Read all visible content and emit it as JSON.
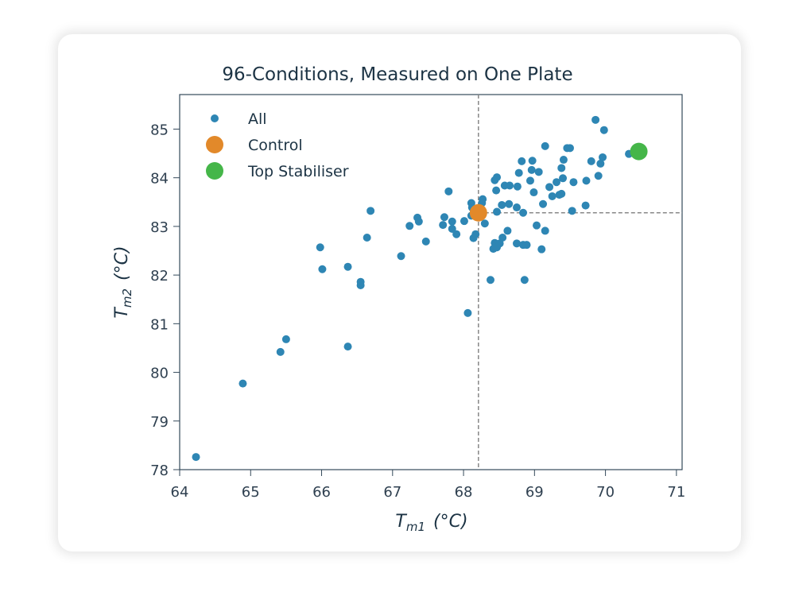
{
  "chart_data": {
    "type": "scatter",
    "title": "96-Conditions, Measured on One Plate",
    "xlabel": {
      "main": "T",
      "sub": "m1",
      "unit": "(°C)"
    },
    "ylabel": {
      "main": "T",
      "sub": "m2",
      "unit": "(°C)"
    },
    "xlim": [
      64,
      71.08
    ],
    "ylim": [
      78,
      85.71
    ],
    "xticks": [
      64,
      65,
      66,
      67,
      68,
      69,
      70,
      71
    ],
    "yticks": [
      78,
      79,
      80,
      81,
      82,
      83,
      84,
      85
    ],
    "grid": false,
    "legend_position": "top-left",
    "reference_lines": {
      "vertical_x": 68.21,
      "horizontal_y": 83.28,
      "style": "dashed",
      "color": "#888888"
    },
    "series": [
      {
        "name": "All",
        "color": "#2e86b4",
        "marker": "small-circle",
        "points": [
          [
            64.23,
            78.26
          ],
          [
            64.89,
            79.77
          ],
          [
            65.42,
            80.42
          ],
          [
            65.5,
            80.68
          ],
          [
            65.98,
            82.57
          ],
          [
            66.01,
            82.12
          ],
          [
            66.37,
            82.17
          ],
          [
            66.37,
            80.53
          ],
          [
            66.55,
            81.86
          ],
          [
            66.55,
            81.79
          ],
          [
            66.64,
            82.77
          ],
          [
            66.69,
            83.32
          ],
          [
            67.12,
            82.39
          ],
          [
            67.24,
            83.01
          ],
          [
            67.35,
            83.18
          ],
          [
            67.37,
            83.1
          ],
          [
            67.47,
            82.69
          ],
          [
            67.71,
            83.03
          ],
          [
            67.73,
            83.19
          ],
          [
            67.79,
            83.72
          ],
          [
            67.84,
            83.1
          ],
          [
            67.84,
            82.95
          ],
          [
            67.9,
            82.84
          ],
          [
            68.01,
            83.11
          ],
          [
            68.06,
            81.22
          ],
          [
            68.11,
            83.48
          ],
          [
            68.12,
            83.39
          ],
          [
            68.11,
            83.22
          ],
          [
            68.14,
            82.76
          ],
          [
            68.17,
            82.84
          ],
          [
            68.26,
            83.48
          ],
          [
            68.27,
            83.56
          ],
          [
            68.3,
            83.06
          ],
          [
            68.38,
            81.9
          ],
          [
            68.42,
            82.54
          ],
          [
            68.44,
            82.66
          ],
          [
            68.44,
            83.95
          ],
          [
            68.46,
            83.74
          ],
          [
            68.47,
            84.01
          ],
          [
            68.47,
            83.3
          ],
          [
            68.47,
            82.57
          ],
          [
            68.51,
            82.65
          ],
          [
            68.54,
            83.44
          ],
          [
            68.55,
            82.77
          ],
          [
            68.58,
            83.84
          ],
          [
            68.62,
            82.91
          ],
          [
            68.64,
            83.46
          ],
          [
            68.65,
            83.84
          ],
          [
            68.75,
            83.39
          ],
          [
            68.75,
            82.65
          ],
          [
            68.76,
            83.82
          ],
          [
            68.78,
            84.1
          ],
          [
            68.82,
            84.34
          ],
          [
            68.84,
            83.28
          ],
          [
            68.84,
            82.62
          ],
          [
            68.86,
            81.9
          ],
          [
            68.89,
            82.62
          ],
          [
            68.94,
            83.94
          ],
          [
            68.97,
            84.35
          ],
          [
            68.96,
            84.16
          ],
          [
            68.99,
            83.7
          ],
          [
            69.03,
            83.02
          ],
          [
            69.06,
            84.12
          ],
          [
            69.1,
            82.53
          ],
          [
            69.12,
            83.46
          ],
          [
            69.15,
            82.91
          ],
          [
            69.15,
            84.65
          ],
          [
            69.21,
            83.81
          ],
          [
            69.25,
            83.62
          ],
          [
            69.31,
            83.91
          ],
          [
            69.35,
            83.65
          ],
          [
            69.38,
            83.67
          ],
          [
            69.38,
            84.2
          ],
          [
            69.4,
            83.99
          ],
          [
            69.41,
            84.37
          ],
          [
            69.46,
            84.61
          ],
          [
            69.5,
            84.61
          ],
          [
            69.53,
            83.32
          ],
          [
            69.55,
            83.91
          ],
          [
            69.72,
            83.43
          ],
          [
            69.73,
            83.94
          ],
          [
            69.8,
            84.34
          ],
          [
            69.86,
            85.19
          ],
          [
            69.9,
            84.04
          ],
          [
            69.93,
            84.29
          ],
          [
            69.96,
            84.42
          ],
          [
            69.98,
            84.98
          ],
          [
            70.33,
            84.49
          ]
        ]
      },
      {
        "name": "Control",
        "color": "#e2892a",
        "marker": "large-circle",
        "points": [
          [
            68.21,
            83.28
          ]
        ]
      },
      {
        "name": "Top Stabiliser",
        "color": "#45b649",
        "marker": "large-circle",
        "points": [
          [
            70.47,
            84.54
          ]
        ]
      }
    ]
  }
}
